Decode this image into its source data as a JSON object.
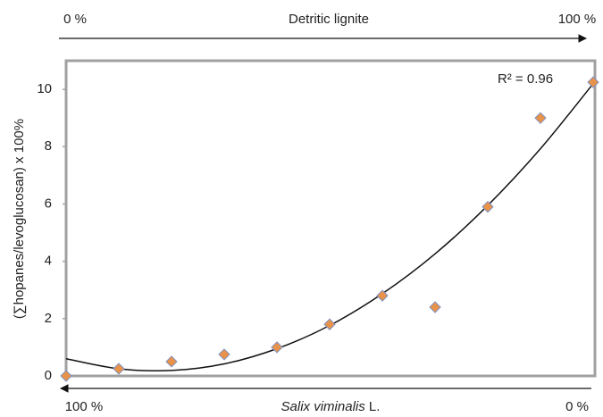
{
  "chart_data": {
    "type": "scatter",
    "y_label": "(∑hopanes/levoglucosan) x 100%",
    "top_axis": {
      "left": "0 %",
      "label": "Detritic lignite",
      "right": "100 %"
    },
    "bottom_axis": {
      "left": "100 %",
      "label_italic": "Salix viminalis",
      "label_suffix": "L.",
      "right": "0 %"
    },
    "annotation": "R² = 0.96",
    "x": [
      0,
      10,
      20,
      30,
      40,
      50,
      60,
      70,
      80,
      90,
      100
    ],
    "values": [
      0,
      0.25,
      0.5,
      0.75,
      1.0,
      1.8,
      2.8,
      2.4,
      5.9,
      9.0,
      10.25
    ],
    "color": "#e8924a",
    "edge_color": "#7f93c4",
    "trendline": {
      "x": [
        0,
        10,
        20,
        30,
        40,
        50,
        60,
        70,
        80,
        90,
        100
      ],
      "values": [
        0.6,
        0.25,
        0.19,
        0.42,
        0.95,
        1.76,
        2.87,
        4.26,
        5.95,
        7.93,
        10.2
      ],
      "color": "#111111"
    },
    "xlim": [
      0,
      100
    ],
    "ylim": [
      0,
      11
    ],
    "yticks": [
      0,
      2,
      4,
      6,
      8,
      10
    ]
  }
}
